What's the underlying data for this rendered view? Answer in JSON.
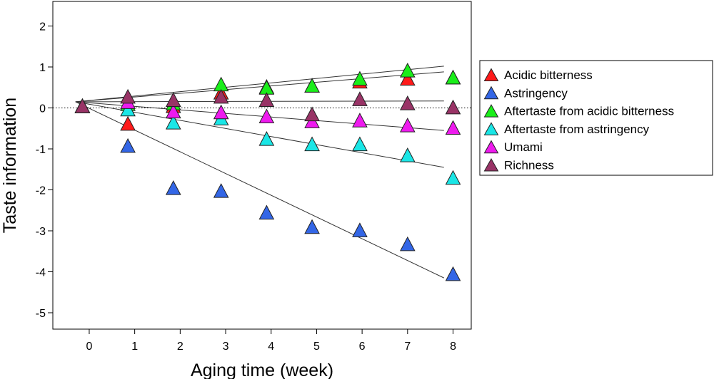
{
  "chart_data": {
    "type": "scatter",
    "title": "",
    "xlabel": "Aging time (week)",
    "ylabel": "Taste information",
    "xlim": [
      -0.8,
      8.4
    ],
    "ylim": [
      -5.4,
      2.6
    ],
    "x_ticks": [
      0,
      1,
      2,
      3,
      4,
      5,
      6,
      7,
      8
    ],
    "y_ticks": [
      2,
      1,
      0,
      -1,
      -2,
      -3,
      -4,
      -5
    ],
    "x_tick_labels": [
      "0",
      "1",
      "2",
      "3",
      "4",
      "5",
      "6",
      "7",
      "8"
    ],
    "y_tick_labels": [
      "2",
      "1",
      "0",
      "-1",
      "-2",
      "-3",
      "-4",
      "-5"
    ],
    "reference_line": {
      "y": 0,
      "style": "dotted"
    },
    "legend_position": "right",
    "marker": "triangle-up",
    "series": [
      {
        "name": "Acidic bitterness",
        "color": "#ff1a1a",
        "x": [
          -0.15,
          0.85,
          1.85,
          2.9,
          3.9,
          4.9,
          5.95,
          7.0,
          8.0
        ],
        "values": [
          0.05,
          -0.38,
          0.05,
          0.38,
          0.52,
          0.55,
          0.65,
          0.72,
          0.75
        ],
        "trend": {
          "x": [
            -0.3,
            7.8
          ],
          "y": [
            0.15,
            0.88
          ]
        }
      },
      {
        "name": "Astringency",
        "color": "#3366e6",
        "x": [
          -0.15,
          0.85,
          1.85,
          2.9,
          3.9,
          4.9,
          5.95,
          7.0,
          8.0
        ],
        "values": [
          0.05,
          -0.92,
          -1.95,
          -2.02,
          -2.55,
          -2.9,
          -2.98,
          -3.32,
          -4.05
        ],
        "trend": {
          "x": [
            -0.3,
            7.8
          ],
          "y": [
            0.15,
            -4.15
          ]
        }
      },
      {
        "name": "Aftertaste from acidic bitterness",
        "color": "#1aee1a",
        "x": [
          -0.15,
          0.85,
          1.85,
          2.9,
          3.9,
          4.9,
          5.95,
          7.0,
          8.0
        ],
        "values": [
          0.05,
          0.1,
          0.12,
          0.58,
          0.5,
          0.55,
          0.72,
          0.92,
          0.75
        ],
        "trend": {
          "x": [
            -0.3,
            7.8
          ],
          "y": [
            0.15,
            1.02
          ]
        }
      },
      {
        "name": "Aftertaste from astringency",
        "color": "#1ae6e6",
        "x": [
          -0.15,
          0.85,
          1.85,
          2.9,
          3.9,
          4.9,
          5.95,
          7.0,
          8.0
        ],
        "values": [
          0.05,
          -0.03,
          -0.35,
          -0.25,
          -0.75,
          -0.88,
          -0.88,
          -1.15,
          -1.7
        ],
        "trend": {
          "x": [
            -0.3,
            7.8
          ],
          "y": [
            0.15,
            -1.45
          ]
        }
      },
      {
        "name": "Umami",
        "color": "#ee1aee",
        "x": [
          -0.15,
          0.85,
          1.85,
          2.9,
          3.9,
          4.9,
          5.95,
          7.0,
          8.0
        ],
        "values": [
          0.05,
          0.15,
          -0.08,
          -0.1,
          -0.2,
          -0.32,
          -0.3,
          -0.42,
          -0.48
        ],
        "trend": {
          "x": [
            -0.3,
            7.8
          ],
          "y": [
            0.15,
            -0.55
          ]
        }
      },
      {
        "name": "Richness",
        "color": "#993366",
        "x": [
          -0.15,
          0.85,
          1.85,
          2.9,
          3.9,
          4.9,
          5.95,
          7.0,
          8.0
        ],
        "values": [
          0.05,
          0.28,
          0.2,
          0.28,
          0.2,
          -0.15,
          0.22,
          0.12,
          0.02
        ],
        "trend": {
          "x": [
            -0.3,
            7.8
          ],
          "y": [
            0.15,
            0.17
          ]
        }
      }
    ]
  }
}
